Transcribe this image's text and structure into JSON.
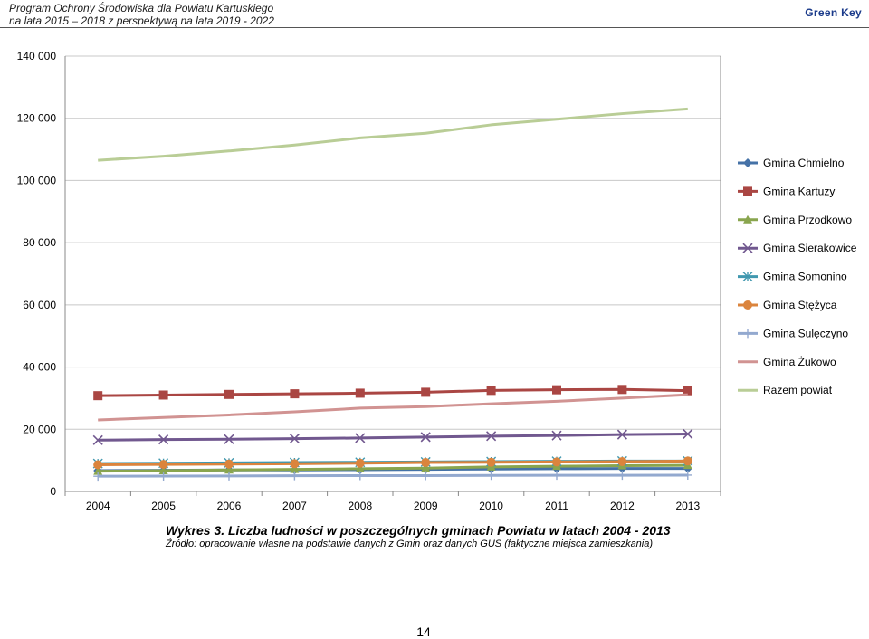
{
  "header": {
    "doc_title_line1": "Program Ochrony Środowiska dla Powiatu Kartuskiego",
    "doc_title_line2": "na lata 2015 – 2018 z perspektywą na lata 2019 - 2022",
    "company": "Green Key"
  },
  "chart_data": {
    "type": "line",
    "title": "",
    "xlabel": "",
    "ylabel": "",
    "x": [
      "2004",
      "2005",
      "2006",
      "2007",
      "2008",
      "2009",
      "2010",
      "2011",
      "2012",
      "2013"
    ],
    "ylim": [
      0,
      140000
    ],
    "yticks": [
      0,
      20000,
      40000,
      60000,
      80000,
      100000,
      120000,
      140000
    ],
    "ytick_labels": [
      "0",
      "20 000",
      "40 000",
      "60 000",
      "80 000",
      "100 000",
      "120 000",
      "140 000"
    ],
    "grid": "horizontal",
    "legend_position": "right",
    "series": [
      {
        "name": "Gmina Chmielno",
        "color": "#4572a7",
        "marker": "diamond",
        "values": [
          6700,
          6800,
          6900,
          6900,
          7000,
          7100,
          7200,
          7300,
          7400,
          7400
        ]
      },
      {
        "name": "Gmina Kartuzy",
        "color": "#aa4643",
        "marker": "square",
        "values": [
          30800,
          31000,
          31200,
          31400,
          31600,
          31900,
          32500,
          32700,
          32800,
          32400
        ]
      },
      {
        "name": "Gmina Przodkowo",
        "color": "#89a54e",
        "marker": "triangle",
        "values": [
          6500,
          6700,
          6900,
          7100,
          7300,
          7500,
          7900,
          8100,
          8300,
          8400
        ]
      },
      {
        "name": "Gmina Sierakowice",
        "color": "#71588f",
        "marker": "x",
        "values": [
          16500,
          16700,
          16800,
          17000,
          17200,
          17500,
          17800,
          18000,
          18300,
          18500
        ]
      },
      {
        "name": "Gmina Somonino",
        "color": "#4198af",
        "marker": "star",
        "values": [
          9000,
          9100,
          9200,
          9300,
          9400,
          9500,
          9600,
          9700,
          9800,
          9800
        ]
      },
      {
        "name": "Gmina Stężyca",
        "color": "#db843d",
        "marker": "circle",
        "values": [
          8600,
          8700,
          8800,
          8900,
          9100,
          9300,
          9400,
          9500,
          9600,
          9800
        ]
      },
      {
        "name": "Gmina Sulęczyno",
        "color": "#93a9cf",
        "marker": "plus",
        "values": [
          4900,
          4950,
          5000,
          5050,
          5100,
          5100,
          5150,
          5200,
          5200,
          5250
        ]
      },
      {
        "name": "Gmina Żukowo",
        "color": "#d19392",
        "marker": "none",
        "values": [
          23000,
          23800,
          24600,
          25600,
          26800,
          27300,
          28200,
          29000,
          30000,
          31100
        ]
      },
      {
        "name": "Razem powiat",
        "color": "#b9cd96",
        "marker": "none",
        "values": [
          106500,
          107800,
          109500,
          111400,
          113700,
          115200,
          117900,
          119700,
          121500,
          123000
        ]
      }
    ]
  },
  "caption": {
    "title": "Wykres 3. Liczba ludności w poszczególnych gminach Powiatu w latach 2004 - 2013",
    "source": "Źródło: opracowanie własne na podstawie danych z Gmin oraz danych GUS (faktyczne miejsca zamieszkania)"
  },
  "page_number": "14"
}
